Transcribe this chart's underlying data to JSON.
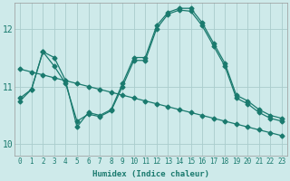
{
  "bg_color": "#ceeaea",
  "grid_color": "#aacccc",
  "line_color": "#1a7a6e",
  "xlabel": "Humidex (Indice chaleur)",
  "ylim": [
    9.8,
    12.45
  ],
  "yticks": [
    10,
    11,
    12
  ],
  "xlim": [
    -0.5,
    23.5
  ],
  "series1_y": [
    10.8,
    10.95,
    11.6,
    11.5,
    11.1,
    10.3,
    10.55,
    10.5,
    10.6,
    11.05,
    11.5,
    11.5,
    12.05,
    12.28,
    12.35,
    12.35,
    12.1,
    11.75,
    11.4,
    10.85,
    10.75,
    10.6,
    10.5,
    10.45
  ],
  "series2_y": [
    11.3,
    11.25,
    11.2,
    11.15,
    11.1,
    11.05,
    11.0,
    10.95,
    10.9,
    10.85,
    10.8,
    10.75,
    10.7,
    10.65,
    10.6,
    10.55,
    10.5,
    10.45,
    10.4,
    10.35,
    10.3,
    10.25,
    10.2,
    10.15
  ],
  "series3_y": [
    10.75,
    10.95,
    11.6,
    11.35,
    11.05,
    10.4,
    10.52,
    10.48,
    10.58,
    11.0,
    11.45,
    11.45,
    12.0,
    12.25,
    12.32,
    12.3,
    12.05,
    11.7,
    11.35,
    10.8,
    10.7,
    10.55,
    10.45,
    10.4
  ],
  "marker_size": 2.5,
  "line_width": 0.9,
  "tick_fontsize": 5.5,
  "xlabel_fontsize": 6.5,
  "ylabel_fontsize": 7
}
